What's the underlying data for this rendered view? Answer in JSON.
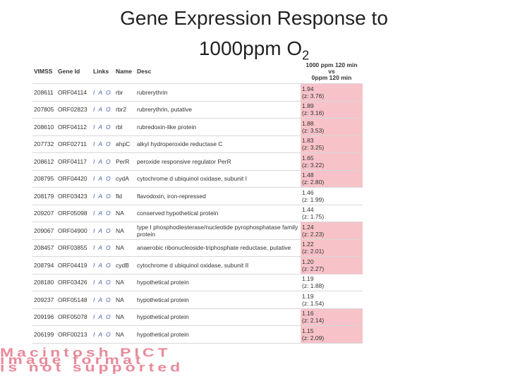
{
  "title": {
    "line1": "Gene Expression Response to",
    "line2": "1000ppm O",
    "subscript": "2"
  },
  "table": {
    "headers": {
      "vimss": "VIMSS",
      "gene": "Gene Id",
      "links": "Links",
      "name": "Name",
      "desc": "Desc",
      "value": [
        "1000 ppm 120 min",
        "vs",
        "0ppm 120 min"
      ]
    },
    "rows": [
      {
        "vimss": "208611",
        "gene": "ORF04114",
        "links": [
          "I",
          "A",
          "O"
        ],
        "name": "rbr",
        "desc": "rubrerythrin",
        "ratio": "1.94",
        "z": "(z: 3.76)",
        "color": "#f7c3c8"
      },
      {
        "vimss": "207805",
        "gene": "ORF02823",
        "links": [
          "I",
          "A",
          "O"
        ],
        "name": "rbr2",
        "desc": "rubrerythrin, putative",
        "ratio": "1.89",
        "z": "(z: 3.16)",
        "color": "#f7c3c8"
      },
      {
        "vimss": "208610",
        "gene": "ORF04112",
        "links": [
          "I",
          "A",
          "O"
        ],
        "name": "rbl",
        "desc": "rubredoxin-like protein",
        "ratio": "1.88",
        "z": "(z: 3.53)",
        "color": "#f7c3c8"
      },
      {
        "vimss": "207732",
        "gene": "ORF02711",
        "links": [
          "I",
          "A",
          "O"
        ],
        "name": "ahpC",
        "desc": "alkyl hydroperoxide reductase C",
        "ratio": "1.83",
        "z": "(z: 3.25)",
        "color": "#f7c3c8"
      },
      {
        "vimss": "208612",
        "gene": "ORF04117",
        "links": [
          "I",
          "A",
          "O"
        ],
        "name": "PerR",
        "desc": "peroxide responsive regulator PerR",
        "ratio": "1.65",
        "z": "(z: 3.22)",
        "color": "#f7c3c8"
      },
      {
        "vimss": "208795",
        "gene": "ORF04420",
        "links": [
          "I",
          "A",
          "O"
        ],
        "name": "cydA",
        "desc": "cytochrome d ubiquinol oxidase, subunit I",
        "ratio": "1.48",
        "z": "(z: 2.80)",
        "color": "#f7c3c8"
      },
      {
        "vimss": "208179",
        "gene": "ORF03423",
        "links": [
          "I",
          "A",
          "O"
        ],
        "name": "fld",
        "desc": "flavodoxin, iron-repressed",
        "ratio": "1.46",
        "z": "(z: 1.99)",
        "color": "#ffffff"
      },
      {
        "vimss": "209207",
        "gene": "ORF05098",
        "links": [
          "I",
          "A",
          "O"
        ],
        "name": "NA",
        "desc": "conserved hypothetical protein",
        "ratio": "1.44",
        "z": "(z: 1.75)",
        "color": "#ffffff"
      },
      {
        "vimss": "209067",
        "gene": "ORF04900",
        "links": [
          "I",
          "A",
          "O"
        ],
        "name": "NA",
        "desc": "type I phosphodiesterase/nucleotide pyrophosphatase family protein",
        "ratio": "1.24",
        "z": "(z: 2.23)",
        "color": "#f7c3c8"
      },
      {
        "vimss": "208457",
        "gene": "ORF03855",
        "links": [
          "I",
          "A",
          "O"
        ],
        "name": "NA",
        "desc": "anaerobic ribonucleoside-triphosphate reductase, putative",
        "ratio": "1.22",
        "z": "(z: 2.01)",
        "color": "#f7c3c8"
      },
      {
        "vimss": "208794",
        "gene": "ORF04419",
        "links": [
          "I",
          "A",
          "O"
        ],
        "name": "cydB",
        "desc": "cytochrome d ubiquinol oxidase, subunit II",
        "ratio": "1.20",
        "z": "(z: 2.27)",
        "color": "#f7c3c8"
      },
      {
        "vimss": "208180",
        "gene": "ORF03426",
        "links": [
          "I",
          "A",
          "O"
        ],
        "name": "NA",
        "desc": "hypothetical protein",
        "ratio": "1.19",
        "z": "(z: 1.88)",
        "color": "#ffffff"
      },
      {
        "vimss": "209237",
        "gene": "ORF05148",
        "links": [
          "I",
          "A",
          "O"
        ],
        "name": "NA",
        "desc": "hypothetical protein",
        "ratio": "1.19",
        "z": "(z: 1.54)",
        "color": "#ffffff"
      },
      {
        "vimss": "209196",
        "gene": "ORF05078",
        "links": [
          "I",
          "A",
          "O"
        ],
        "name": "NA",
        "desc": "hypothetical protein",
        "ratio": "1.16",
        "z": "(z: 2.14)",
        "color": "#f7c3c8"
      },
      {
        "vimss": "206199",
        "gene": "ORF00213",
        "links": [
          "I",
          "A",
          "O"
        ],
        "name": "NA",
        "desc": "hypothetical protein",
        "ratio": "1.15",
        "z": "(z: 2.09)",
        "color": "#f7c3c8"
      }
    ]
  },
  "placeholder": [
    "Macintosh PICT",
    "image format",
    "is not supported"
  ]
}
